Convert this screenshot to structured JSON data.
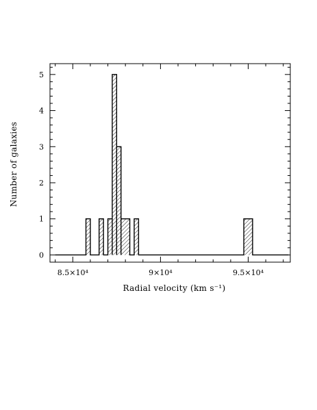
{
  "chart_data": {
    "type": "bar",
    "style": "histogram",
    "xlabel": "Radial velocity (km s⁻¹)",
    "ylabel": "Number of galaxies",
    "xlim": [
      83700,
      97400
    ],
    "ylim": [
      -0.2,
      5.3
    ],
    "bin_width": 250,
    "x_range_drawn": [
      84000,
      97300
    ],
    "bins": [
      {
        "start": 85750,
        "end": 86000,
        "count": 1
      },
      {
        "start": 86500,
        "end": 86750,
        "count": 1
      },
      {
        "start": 87000,
        "end": 87250,
        "count": 1
      },
      {
        "start": 87250,
        "end": 87500,
        "count": 5
      },
      {
        "start": 87500,
        "end": 87750,
        "count": 3
      },
      {
        "start": 87750,
        "end": 88250,
        "count": 1
      },
      {
        "start": 88500,
        "end": 88750,
        "count": 1
      },
      {
        "start": 94750,
        "end": 95250,
        "count": 1
      }
    ],
    "x_ticks": [
      {
        "value": 85000,
        "label": "8.5×10⁴"
      },
      {
        "value": 90000,
        "label": "9×10⁴"
      },
      {
        "value": 95000,
        "label": "9.5×10⁴"
      }
    ],
    "x_minor_step": 1000,
    "y_ticks": [
      {
        "value": 0,
        "label": "0"
      },
      {
        "value": 1,
        "label": "1"
      },
      {
        "value": 2,
        "label": "2"
      },
      {
        "value": 3,
        "label": "3"
      },
      {
        "value": 4,
        "label": "4"
      },
      {
        "value": 5,
        "label": "5"
      }
    ],
    "y_minor_step": 0.2,
    "grid": false,
    "fill": "diagonal-hatch",
    "colors": {
      "line": "#000000",
      "background": "#ffffff"
    }
  }
}
